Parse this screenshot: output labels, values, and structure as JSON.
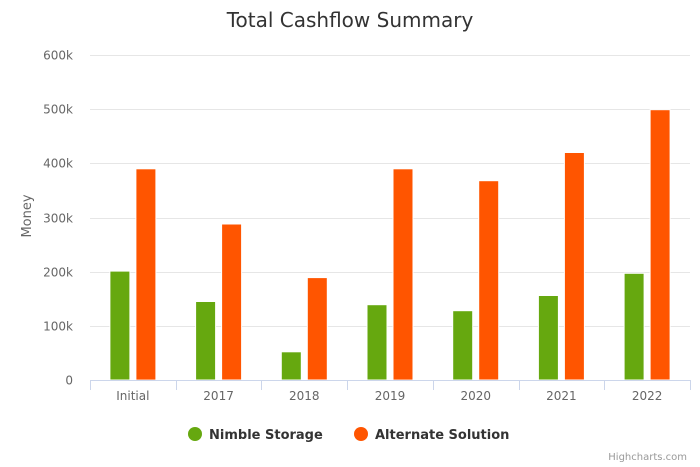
{
  "chart_data": {
    "type": "bar",
    "title": "Total Cashflow Summary",
    "ylabel": "Money",
    "xlabel": "",
    "ylim": [
      0,
      600000
    ],
    "yticks": [
      0,
      100000,
      200000,
      300000,
      400000,
      500000,
      600000
    ],
    "ytick_labels": [
      "0",
      "100k",
      "200k",
      "300k",
      "400k",
      "500k",
      "600k"
    ],
    "categories": [
      "Initial",
      "2017",
      "2018",
      "2019",
      "2020",
      "2021",
      "2022"
    ],
    "series": [
      {
        "name": "Nimble Storage",
        "color": "#66a80f",
        "values": [
          201000,
          145000,
          52000,
          139000,
          128000,
          156000,
          197000
        ]
      },
      {
        "name": "Alternate Solution",
        "color": "#ff5500",
        "values": [
          390000,
          288000,
          189000,
          390000,
          368000,
          420000,
          499000
        ]
      }
    ],
    "grid": true,
    "legend": "bottom-center"
  },
  "credits": "Highcharts.com"
}
